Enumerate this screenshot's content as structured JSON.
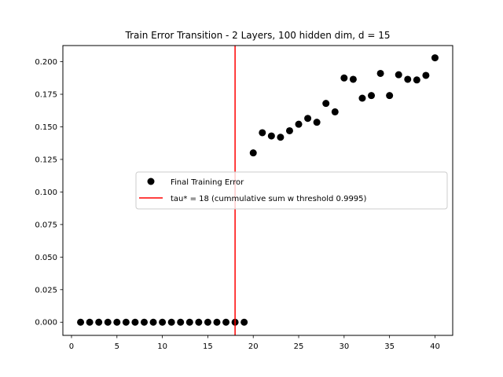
{
  "chart_data": {
    "type": "scatter",
    "title": "Train Error Transition - 2 Layers, 100 hidden dim, d = 15",
    "xlabel": "",
    "ylabel": "",
    "xlim": [
      -0.95,
      41.95
    ],
    "ylim": [
      -0.0101,
      0.2124
    ],
    "xticks": [
      0,
      5,
      10,
      15,
      20,
      25,
      30,
      35,
      40
    ],
    "xtick_labels": [
      "0",
      "5",
      "10",
      "15",
      "20",
      "25",
      "30",
      "35",
      "40"
    ],
    "yticks": [
      0.0,
      0.025,
      0.05,
      0.075,
      0.1,
      0.125,
      0.15,
      0.175,
      0.2
    ],
    "ytick_labels": [
      "0.000",
      "0.025",
      "0.050",
      "0.075",
      "0.100",
      "0.125",
      "0.150",
      "0.175",
      "0.200"
    ],
    "grid": false,
    "legend_position": "center-right",
    "series": [
      {
        "name": "Final Training Error",
        "type": "scatter",
        "color": "#000000",
        "x": [
          1,
          2,
          3,
          4,
          5,
          6,
          7,
          8,
          9,
          10,
          11,
          12,
          13,
          14,
          15,
          16,
          17,
          18,
          19,
          20,
          21,
          22,
          23,
          24,
          25,
          26,
          27,
          28,
          29,
          30,
          31,
          32,
          33,
          34,
          35,
          36,
          37,
          38,
          39,
          40
        ],
        "y": [
          0.0,
          0.0,
          0.0,
          0.0,
          0.0,
          0.0,
          0.0,
          0.0,
          0.0,
          0.0,
          0.0,
          0.0,
          0.0,
          0.0,
          0.0,
          0.0,
          0.0,
          0.0,
          0.0,
          0.13,
          0.1455,
          0.143,
          0.142,
          0.147,
          0.152,
          0.1565,
          0.1535,
          0.168,
          0.1615,
          0.1875,
          0.1865,
          0.172,
          0.174,
          0.191,
          0.174,
          0.19,
          0.1865,
          0.186,
          0.1895,
          0.203
        ]
      },
      {
        "name": "tau* = 18 (cummulative sum w threshold 0.9995)",
        "type": "vline",
        "color": "#ff0000",
        "x": 18
      }
    ]
  }
}
